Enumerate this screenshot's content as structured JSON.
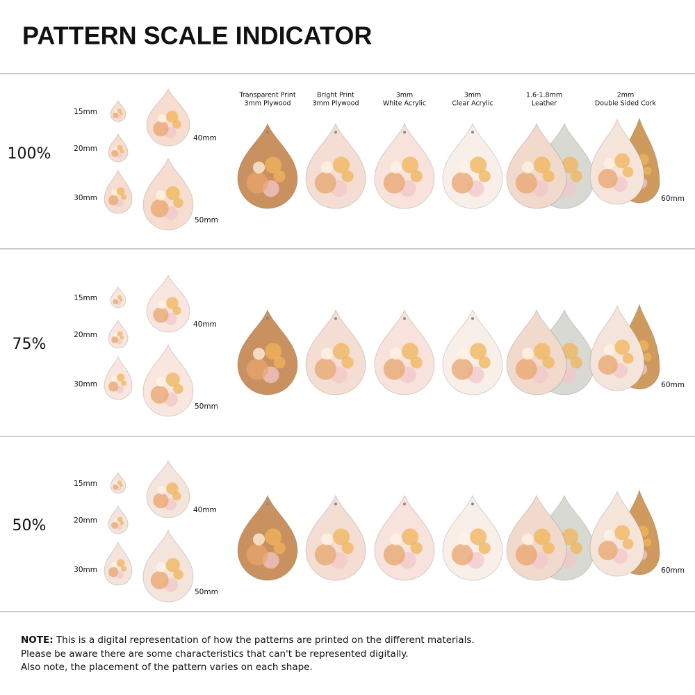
{
  "title": "PATTERN SCALE INDICATOR",
  "materials": [
    {
      "top": "Transparent Print",
      "bottom": "3mm Plywood"
    },
    {
      "top": "Bright Print",
      "bottom": "3mm Plywood"
    },
    {
      "top": "3mm",
      "bottom": "White Acrylic"
    },
    {
      "top": "3mm",
      "bottom": "Clear Acrylic"
    },
    {
      "top": "1.6-1.8mm",
      "bottom": "Leather"
    },
    {
      "top": "2mm",
      "bottom": "Double Sided Cork"
    }
  ],
  "sections": [
    {
      "scale": "100%",
      "sizes": [
        "15mm",
        "20mm",
        "30mm",
        "40mm",
        "50mm"
      ],
      "large_size": "60mm"
    },
    {
      "scale": "75%",
      "sizes": [
        "15mm",
        "20mm",
        "30mm",
        "40mm",
        "50mm"
      ],
      "large_size": "60mm"
    },
    {
      "scale": "50%",
      "sizes": [
        "15mm",
        "20mm",
        "30mm",
        "40mm",
        "50mm"
      ],
      "large_size": "60mm"
    }
  ],
  "note": {
    "label": "NOTE:",
    "lines": [
      "This is a digital representation of how the patterns are printed on the different materials.",
      "Please be aware there are some characteristics that can't be represented digitally.",
      "Also note, the placement of the pattern varies on each shape."
    ]
  }
}
